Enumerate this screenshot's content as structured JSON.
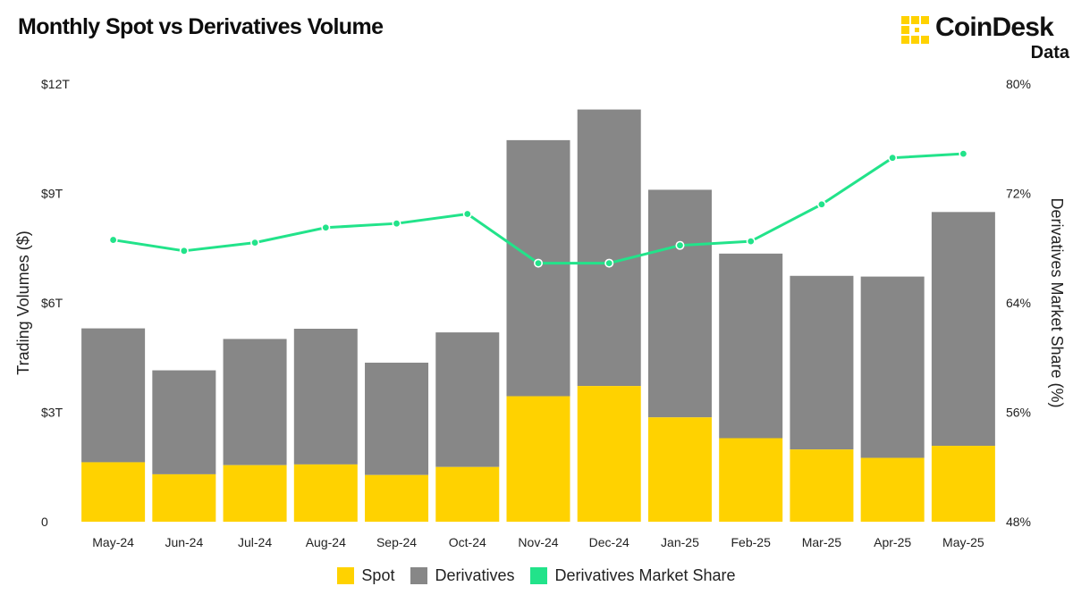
{
  "header": {
    "title": "Monthly Spot vs Derivatives Volume",
    "brand": "CoinDesk",
    "brand_sub": "Data"
  },
  "colors": {
    "spot": "#FFD200",
    "derivatives": "#878787",
    "share": "#22E38A",
    "brand_yellow": "#FFD200"
  },
  "icons": {
    "logo": "coindesk-logo-icon"
  },
  "chart_data": {
    "type": "bar",
    "stacked": true,
    "title": "Monthly Spot vs Derivatives Volume",
    "ylabel": "Trading Volumes ($)",
    "y2label": "Derivatives Market Share (%)",
    "categories": [
      "May-24",
      "Jun-24",
      "Jul-24",
      "Aug-24",
      "Sep-24",
      "Oct-24",
      "Nov-24",
      "Dec-24",
      "Jan-25",
      "Feb-25",
      "Mar-25",
      "Apr-25",
      "May-25"
    ],
    "ylim": [
      0,
      12
    ],
    "y_ticks": [
      0,
      3,
      6,
      9,
      12
    ],
    "y_tick_labels": [
      "0",
      "$3T",
      "$6T",
      "$9T",
      "$12T"
    ],
    "y2lim": [
      48,
      80
    ],
    "y2_ticks": [
      48,
      56,
      64,
      72,
      80
    ],
    "y2_tick_labels": [
      "48%",
      "56%",
      "64%",
      "72%",
      "80%"
    ],
    "series": [
      {
        "name": "Spot",
        "kind": "bar",
        "values": [
          1.63,
          1.3,
          1.55,
          1.57,
          1.28,
          1.5,
          3.44,
          3.72,
          2.86,
          2.29,
          1.98,
          1.75,
          2.08
        ]
      },
      {
        "name": "Derivatives",
        "kind": "bar",
        "values": [
          3.67,
          2.85,
          3.46,
          3.72,
          3.08,
          3.69,
          7.02,
          7.58,
          6.24,
          5.06,
          4.76,
          4.97,
          6.41
        ]
      },
      {
        "name": "Derivatives Market Share",
        "kind": "line",
        "axis": "right",
        "values": [
          68.6,
          67.8,
          68.4,
          69.5,
          69.8,
          70.5,
          66.9,
          66.9,
          68.2,
          68.5,
          71.2,
          74.6,
          74.9
        ]
      }
    ],
    "grid": false,
    "legend_position": "bottom-center"
  }
}
